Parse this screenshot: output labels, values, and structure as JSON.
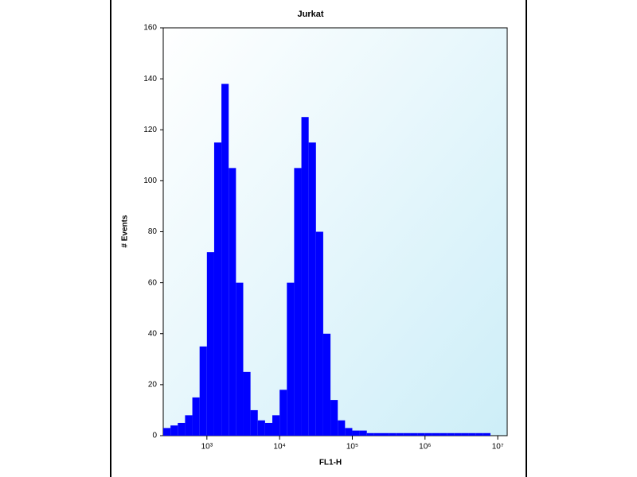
{
  "chart_data": {
    "type": "histogram",
    "title": "Jurkat",
    "x_label": "FL1-H",
    "y_label": "# Events",
    "xscale": "log",
    "bins": [
      251,
      316,
      398,
      501,
      631,
      794,
      1000,
      1259,
      1585,
      1995,
      2512,
      3162,
      3981,
      5012,
      6310,
      7943,
      10000,
      12589,
      15849,
      19953,
      25119,
      31623,
      39811,
      50119,
      63096,
      79433,
      100000,
      125893,
      158489,
      199526,
      251189,
      316228,
      398107,
      501187,
      630957,
      794328,
      1000000,
      1258925,
      1584893,
      1995262,
      2511886,
      3162278,
      3981072,
      5011872,
      6309573,
      7943282,
      10000000,
      12589254
    ],
    "values": [
      3,
      4,
      5,
      8,
      15,
      35,
      72,
      115,
      138,
      105,
      60,
      25,
      10,
      6,
      5,
      8,
      18,
      60,
      105,
      125,
      115,
      80,
      40,
      14,
      6,
      3,
      2,
      2,
      1,
      1,
      1,
      1,
      1,
      1,
      1,
      1,
      1,
      1,
      1,
      1,
      1,
      1,
      1,
      1,
      1,
      0,
      0
    ],
    "color": "#0000ff",
    "xlim": [
      251,
      13500000
    ],
    "xticks": [
      {
        "value": 1000,
        "label": "10³"
      },
      {
        "value": 10000,
        "label": "10⁴"
      },
      {
        "value": 100000,
        "label": "10⁵"
      },
      {
        "value": 1000000,
        "label": "10⁶"
      },
      {
        "value": 10000000,
        "label": "10⁷"
      }
    ],
    "ylim": [
      0,
      160
    ],
    "yticks": [
      0,
      20,
      40,
      60,
      80,
      100,
      120,
      140,
      160
    ]
  }
}
